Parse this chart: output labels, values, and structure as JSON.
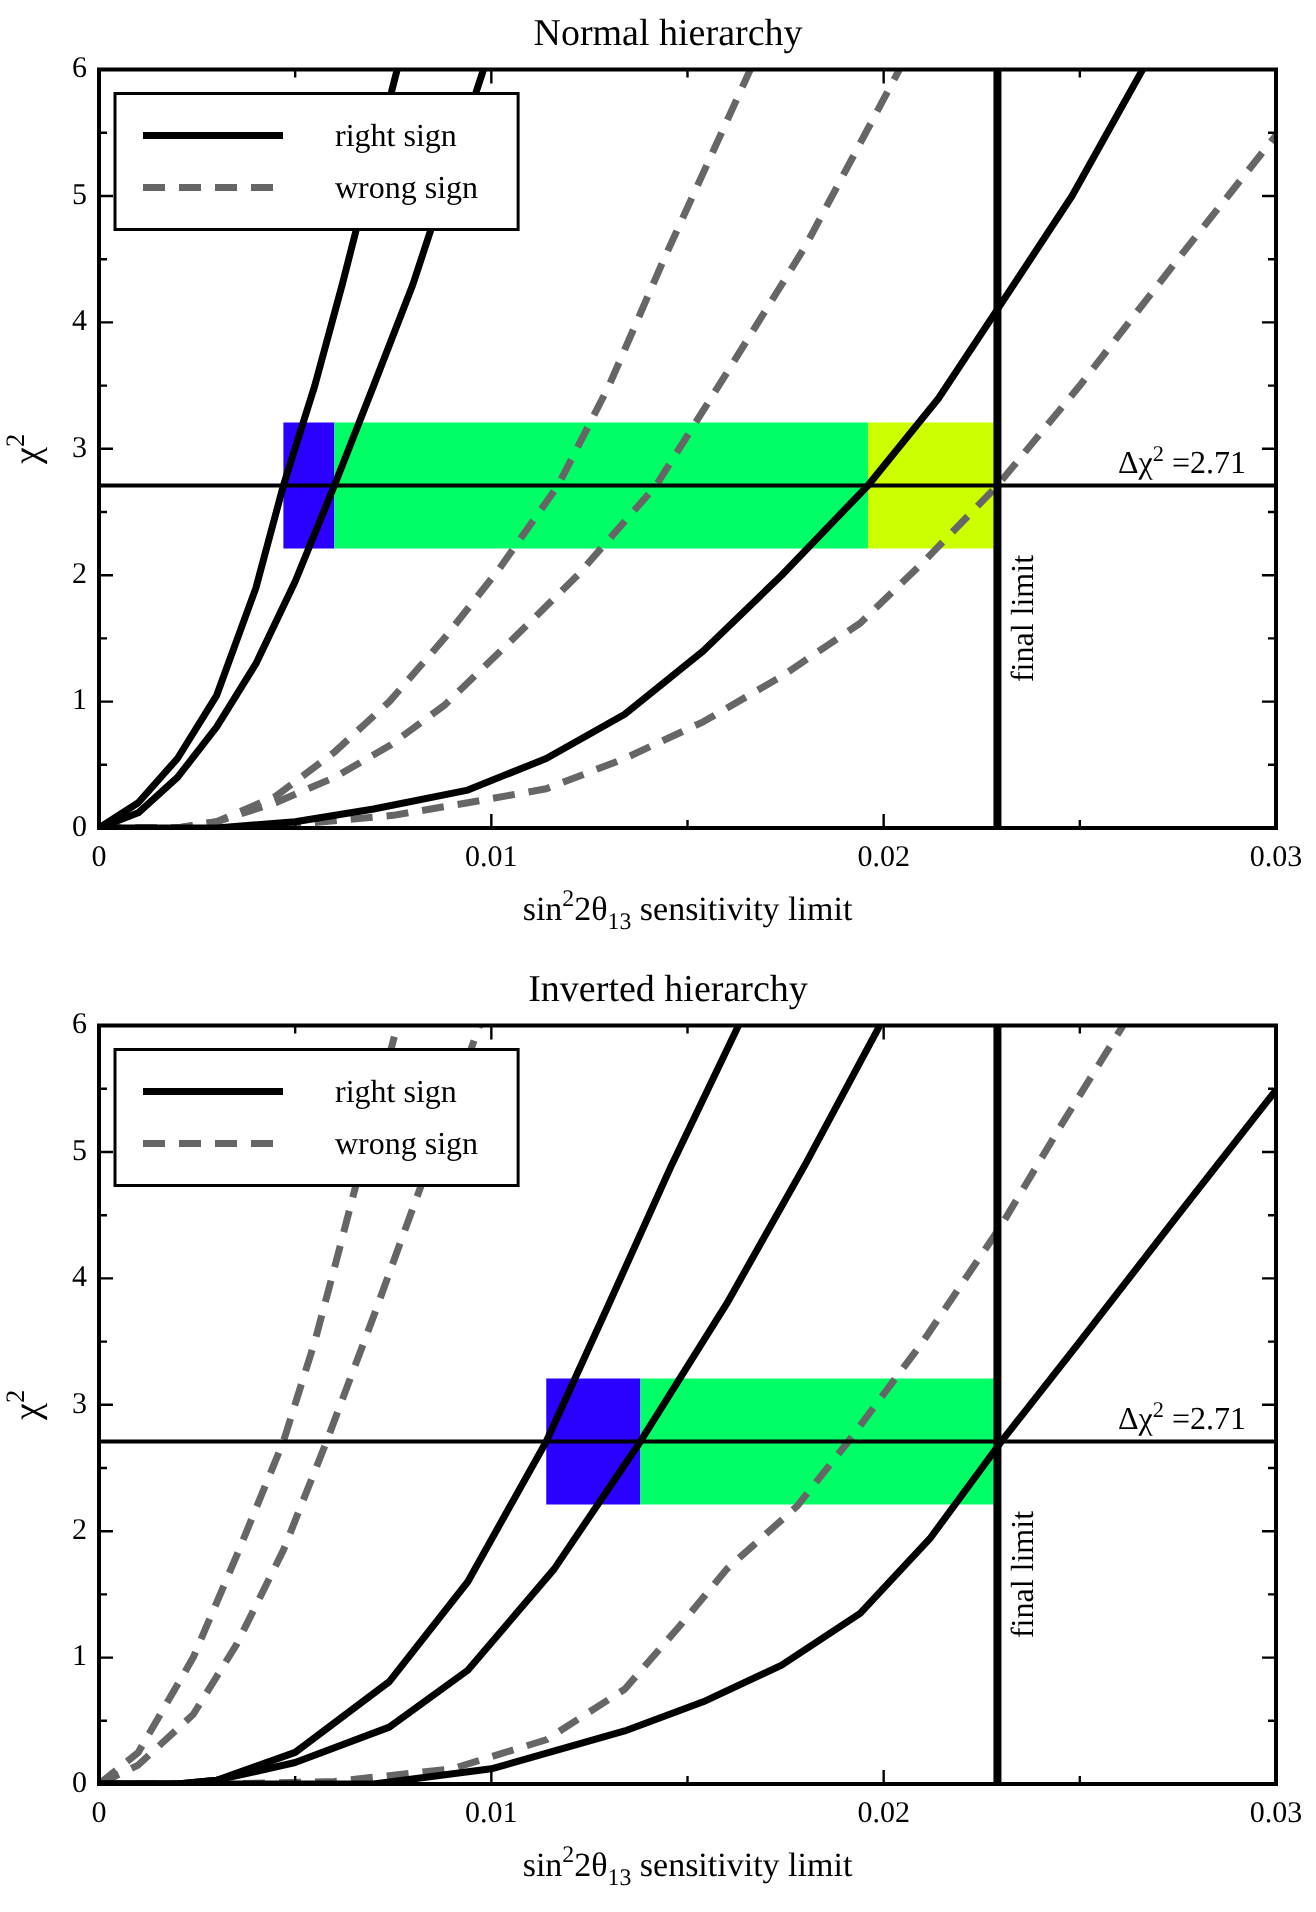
{
  "chart_data": [
    {
      "type": "line",
      "title": "Normal hierarchy",
      "xlabel": "sin$^{2}$2θ$_{13}$ sensitivity limit",
      "ylabel": "χ$^{2}$",
      "xlim": [
        0,
        0.03
      ],
      "ylim": [
        0,
        6
      ],
      "xticks": [
        0,
        {
          "value": 0.005,
          "label": null
        },
        0.01,
        {
          "value": 0.015,
          "label": null
        },
        0.02,
        {
          "value": 0.025,
          "label": null
        },
        0.03
      ],
      "yticks": [
        0,
        {
          "value": 0.5,
          "label": null
        },
        1,
        {
          "value": 1.5,
          "label": null
        },
        2,
        {
          "value": 2.5,
          "label": null
        },
        3,
        {
          "value": 3.5,
          "label": null
        },
        4,
        {
          "value": 4.5,
          "label": null
        },
        5,
        {
          "value": 5.5,
          "label": null
        },
        6
      ],
      "legend": "top left",
      "marker": "none",
      "grid": false,
      "series": [
        {
          "name": "right sign",
          "color": "#000000",
          "line_style": "solid",
          "x": [
            0,
            0.001,
            0.002,
            0.003,
            0.004,
            0.0047,
            0.0055,
            0.0062,
            0.0076
          ],
          "values": [
            0,
            0.2,
            0.55,
            1.05,
            1.9,
            2.71,
            3.5,
            4.3,
            6
          ]
        },
        {
          "color": "#000000",
          "line_style": "solid",
          "x": [
            0,
            0.001,
            0.002,
            0.003,
            0.004,
            0.005,
            0.006,
            0.007,
            0.008,
            0.0098
          ],
          "values": [
            0,
            0.12,
            0.4,
            0.8,
            1.3,
            1.95,
            2.71,
            3.5,
            4.3,
            6
          ]
        },
        {
          "color": "#000000",
          "line_style": "solid",
          "x": [
            0,
            0.003,
            0.005,
            0.007,
            0.0094,
            0.0114,
            0.0134,
            0.0154,
            0.0174,
            0.0196,
            0.0214,
            0.023,
            0.0248,
            0.0266
          ],
          "values": [
            0,
            0,
            0.05,
            0.15,
            0.3,
            0.55,
            0.9,
            1.4,
            2.0,
            2.71,
            3.4,
            4.15,
            5.0,
            6
          ]
        },
        {
          "name": "wrong sign",
          "color": "#666666",
          "line_style": "dashed",
          "x": [
            0,
            0.002,
            0.003,
            0.0045,
            0.006,
            0.0074,
            0.0088,
            0.0102,
            0.0117,
            0.013,
            0.0144,
            0.0166
          ],
          "values": [
            0,
            0,
            0.05,
            0.25,
            0.6,
            1.0,
            1.5,
            2.05,
            2.71,
            3.5,
            4.5,
            6
          ]
        },
        {
          "color": "#666666",
          "line_style": "dashed",
          "x": [
            0,
            0.002,
            0.003,
            0.0045,
            0.006,
            0.0074,
            0.0088,
            0.0104,
            0.0122,
            0.0142,
            0.016,
            0.018,
            0.0204
          ],
          "values": [
            0,
            0,
            0.05,
            0.2,
            0.4,
            0.65,
            0.97,
            1.45,
            2.0,
            2.71,
            3.6,
            4.6,
            6
          ]
        },
        {
          "color": "#666666",
          "line_style": "dashed",
          "x": [
            0,
            0.003,
            0.005,
            0.0075,
            0.0094,
            0.0114,
            0.0134,
            0.0154,
            0.0174,
            0.0194,
            0.021,
            0.0229,
            0.025,
            0.0275,
            0.03
          ],
          "values": [
            0,
            0,
            0.03,
            0.1,
            0.2,
            0.31,
            0.55,
            0.84,
            1.2,
            1.62,
            2.1,
            2.71,
            3.5,
            4.5,
            5.48
          ]
        }
      ],
      "ref_lines": [
        {
          "axis": "y",
          "value": 2.71,
          "label": "Δχ$^{2}$ =2.71",
          "color": "#000000"
        },
        {
          "axis": "x",
          "value": 0.0229,
          "label": "final limit",
          "color": "#000000"
        }
      ],
      "bands": [
        {
          "axis": "x",
          "from": 0.0047,
          "to": 0.006,
          "color": "#2a00ff"
        },
        {
          "axis": "x",
          "from": 0.006,
          "to": 0.0196,
          "color": "#00ff66"
        },
        {
          "axis": "x",
          "from": 0.0196,
          "to": 0.0229,
          "color": "#ccff00"
        }
      ]
    },
    {
      "type": "line",
      "title": "Inverted hierarchy",
      "xlabel": "sin$^{2}$2θ$_{13}$ sensitivity limit",
      "ylabel": "χ$^{2}$",
      "xlim": [
        0,
        0.03
      ],
      "ylim": [
        0,
        6
      ],
      "xticks": [
        0,
        {
          "value": 0.005,
          "label": null
        },
        0.01,
        {
          "value": 0.015,
          "label": null
        },
        0.02,
        {
          "value": 0.025,
          "label": null
        },
        0.03
      ],
      "yticks": [
        0,
        {
          "value": 0.5,
          "label": null
        },
        1,
        {
          "value": 1.5,
          "label": null
        },
        2,
        {
          "value": 2.5,
          "label": null
        },
        3,
        {
          "value": 3.5,
          "label": null
        },
        4,
        {
          "value": 4.5,
          "label": null
        },
        5,
        {
          "value": 5.5,
          "label": null
        },
        6
      ],
      "legend": "top left",
      "marker": "none",
      "grid": false,
      "series": [
        {
          "name": "right sign",
          "color": "#000000",
          "line_style": "solid",
          "x": [
            0,
            0.002,
            0.003,
            0.005,
            0.0074,
            0.0094,
            0.0114,
            0.013,
            0.0146,
            0.0163
          ],
          "values": [
            0,
            0,
            0.03,
            0.25,
            0.81,
            1.6,
            2.71,
            3.8,
            4.9,
            6
          ]
        },
        {
          "color": "#000000",
          "line_style": "solid",
          "x": [
            0,
            0.002,
            0.003,
            0.005,
            0.0074,
            0.0094,
            0.0116,
            0.0138,
            0.016,
            0.018,
            0.0199
          ],
          "values": [
            0,
            0,
            0.03,
            0.17,
            0.45,
            0.9,
            1.7,
            2.71,
            3.8,
            4.9,
            6
          ]
        },
        {
          "color": "#000000",
          "line_style": "solid",
          "x": [
            0,
            0.007,
            0.01,
            0.0134,
            0.0154,
            0.0174,
            0.0194,
            0.0212,
            0.023,
            0.025,
            0.0275,
            0.03
          ],
          "values": [
            0,
            0,
            0.12,
            0.42,
            0.65,
            0.94,
            1.35,
            1.95,
            2.71,
            3.5,
            4.5,
            5.49
          ]
        },
        {
          "name": "wrong sign",
          "color": "#666666",
          "line_style": "dashed",
          "x": [
            0,
            0.001,
            0.0024,
            0.0035,
            0.0047,
            0.0055,
            0.0061,
            0.0076
          ],
          "values": [
            0,
            0.25,
            1.0,
            1.8,
            2.71,
            3.5,
            4.2,
            6
          ]
        },
        {
          "color": "#666666",
          "line_style": "dashed",
          "x": [
            0,
            0.001,
            0.0024,
            0.0035,
            0.0047,
            0.0058,
            0.007,
            0.0077,
            0.0097
          ],
          "values": [
            0,
            0.15,
            0.55,
            1.1,
            1.85,
            2.71,
            3.7,
            4.3,
            6
          ]
        },
        {
          "color": "#666666",
          "line_style": "dashed",
          "x": [
            0,
            0.003,
            0.006,
            0.009,
            0.0114,
            0.0134,
            0.0148,
            0.016,
            0.0178,
            0.0191,
            0.021,
            0.023,
            0.0245,
            0.0261
          ],
          "values": [
            0,
            0,
            0.02,
            0.12,
            0.35,
            0.75,
            1.25,
            1.7,
            2.2,
            2.71,
            3.5,
            4.42,
            5.2,
            6
          ]
        }
      ],
      "ref_lines": [
        {
          "axis": "y",
          "value": 2.71,
          "label": "Δχ$^{2}$ =2.71",
          "color": "#000000"
        },
        {
          "axis": "x",
          "value": 0.0229,
          "label": "final limit",
          "color": "#000000"
        }
      ],
      "bands": [
        {
          "axis": "x",
          "from": 0.0114,
          "to": 0.0138,
          "color": "#2a00ff"
        },
        {
          "axis": "x",
          "from": 0.0138,
          "to": 0.0229,
          "color": "#00ff66"
        }
      ]
    }
  ]
}
